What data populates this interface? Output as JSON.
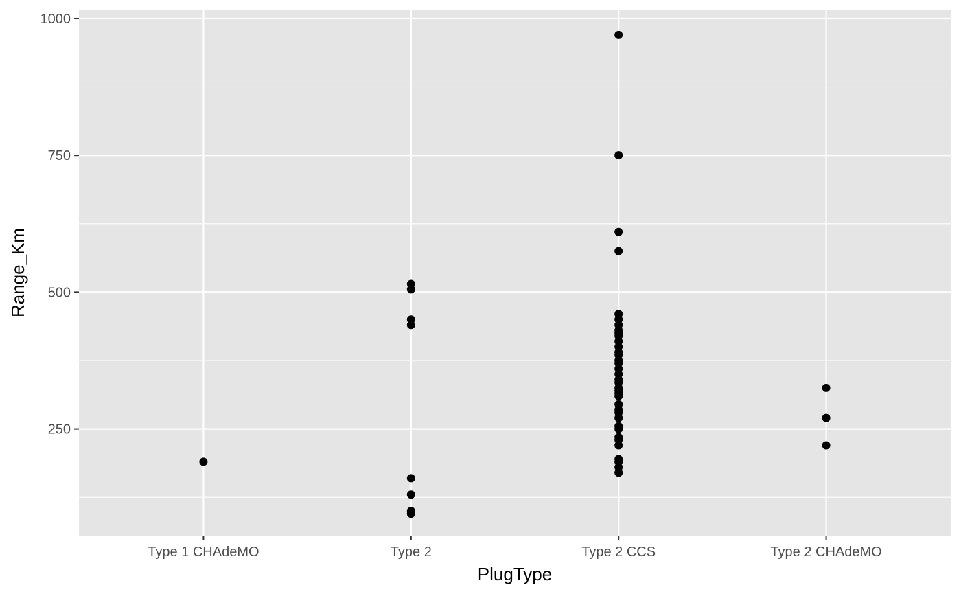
{
  "chart_data": {
    "type": "scatter",
    "title": "",
    "xlabel": "PlugType",
    "ylabel": "Range_Km",
    "categories": [
      "Type 1 CHAdeMO",
      "Type 2",
      "Type 2 CCS",
      "Type 2 CHAdeMO"
    ],
    "ylim": [
      55,
      1015
    ],
    "yticks": [
      250,
      500,
      750,
      1000
    ],
    "grid": true,
    "points": [
      {
        "x": "Type 1 CHAdeMO",
        "y": 190
      },
      {
        "x": "Type 2",
        "y": 515
      },
      {
        "x": "Type 2",
        "y": 505
      },
      {
        "x": "Type 2",
        "y": 450
      },
      {
        "x": "Type 2",
        "y": 440
      },
      {
        "x": "Type 2",
        "y": 160
      },
      {
        "x": "Type 2",
        "y": 130
      },
      {
        "x": "Type 2",
        "y": 100
      },
      {
        "x": "Type 2",
        "y": 95
      },
      {
        "x": "Type 2 CCS",
        "y": 970
      },
      {
        "x": "Type 2 CCS",
        "y": 750
      },
      {
        "x": "Type 2 CCS",
        "y": 610
      },
      {
        "x": "Type 2 CCS",
        "y": 575
      },
      {
        "x": "Type 2 CCS",
        "y": 460
      },
      {
        "x": "Type 2 CCS",
        "y": 450
      },
      {
        "x": "Type 2 CCS",
        "y": 440
      },
      {
        "x": "Type 2 CCS",
        "y": 430
      },
      {
        "x": "Type 2 CCS",
        "y": 425
      },
      {
        "x": "Type 2 CCS",
        "y": 420
      },
      {
        "x": "Type 2 CCS",
        "y": 410
      },
      {
        "x": "Type 2 CCS",
        "y": 400
      },
      {
        "x": "Type 2 CCS",
        "y": 390
      },
      {
        "x": "Type 2 CCS",
        "y": 385
      },
      {
        "x": "Type 2 CCS",
        "y": 375
      },
      {
        "x": "Type 2 CCS",
        "y": 370
      },
      {
        "x": "Type 2 CCS",
        "y": 360
      },
      {
        "x": "Type 2 CCS",
        "y": 350
      },
      {
        "x": "Type 2 CCS",
        "y": 340
      },
      {
        "x": "Type 2 CCS",
        "y": 335
      },
      {
        "x": "Type 2 CCS",
        "y": 325
      },
      {
        "x": "Type 2 CCS",
        "y": 320
      },
      {
        "x": "Type 2 CCS",
        "y": 315
      },
      {
        "x": "Type 2 CCS",
        "y": 310
      },
      {
        "x": "Type 2 CCS",
        "y": 295
      },
      {
        "x": "Type 2 CCS",
        "y": 285
      },
      {
        "x": "Type 2 CCS",
        "y": 280
      },
      {
        "x": "Type 2 CCS",
        "y": 270
      },
      {
        "x": "Type 2 CCS",
        "y": 255
      },
      {
        "x": "Type 2 CCS",
        "y": 250
      },
      {
        "x": "Type 2 CCS",
        "y": 235
      },
      {
        "x": "Type 2 CCS",
        "y": 230
      },
      {
        "x": "Type 2 CCS",
        "y": 220
      },
      {
        "x": "Type 2 CCS",
        "y": 195
      },
      {
        "x": "Type 2 CCS",
        "y": 190
      },
      {
        "x": "Type 2 CCS",
        "y": 180
      },
      {
        "x": "Type 2 CCS",
        "y": 170
      },
      {
        "x": "Type 2 CHAdeMO",
        "y": 325
      },
      {
        "x": "Type 2 CHAdeMO",
        "y": 270
      },
      {
        "x": "Type 2 CHAdeMO",
        "y": 220
      }
    ],
    "colors": {
      "panel_background": "#e5e5e5",
      "grid_line": "#ffffff",
      "point": "#000000",
      "tick_label": "#4d4d4d",
      "axis_title": "#000000"
    }
  }
}
